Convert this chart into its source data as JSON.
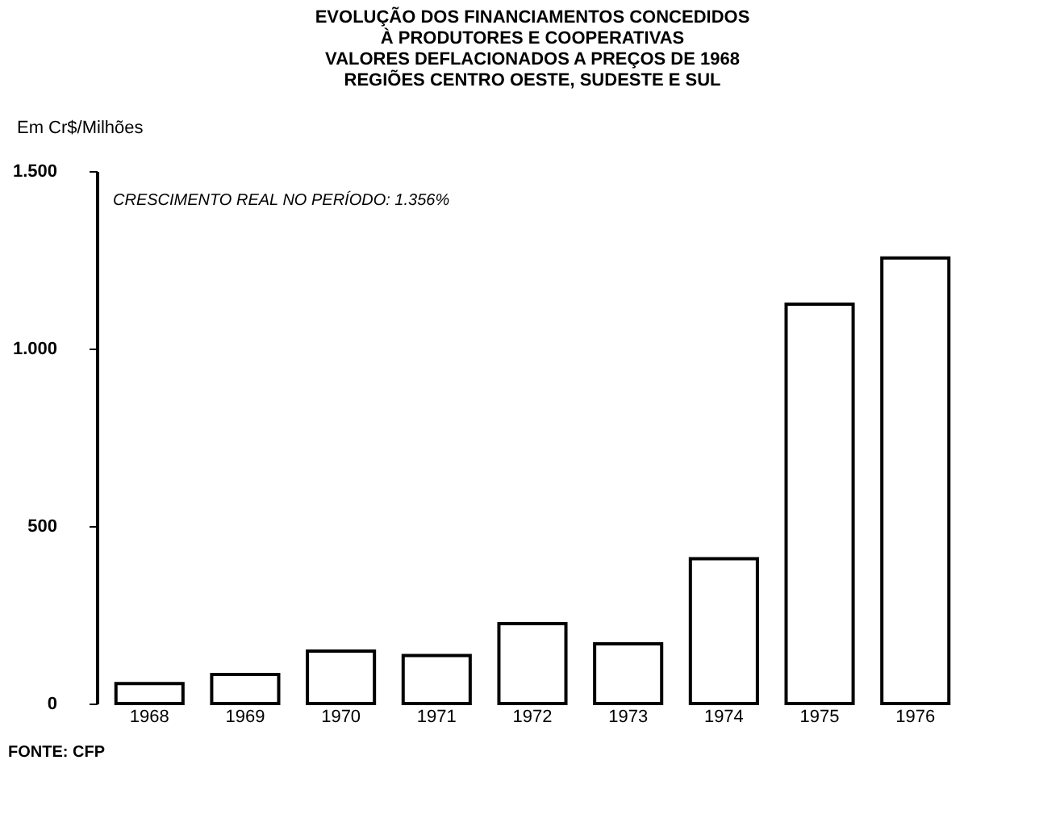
{
  "chart_data": {
    "type": "bar",
    "title": [
      "EVOLUÇÃO DOS FINANCIAMENTOS CONCEDIDOS",
      "À PRODUTORES E COOPERATIVAS",
      "VALORES DEFLACIONADOS A PREÇOS DE 1968",
      "REGIÕES CENTRO OESTE, SUDESTE E SUL"
    ],
    "ylabel": "Em Cr$/Milhões",
    "categories": [
      "1968",
      "1969",
      "1970",
      "1971",
      "1972",
      "1973",
      "1974",
      "1975",
      "1976"
    ],
    "values": [
      56,
      82,
      148,
      135,
      225,
      168,
      408,
      1125,
      1255
    ],
    "color": "#000000",
    "ylim": [
      0,
      1500
    ],
    "yticks": [
      0,
      500,
      {
        "value": 1000,
        "label": "1.000"
      },
      {
        "value": 1500,
        "label": "1.500"
      }
    ],
    "grid": false,
    "annotations": [
      "CRESCIMENTO REAL NO PERÍODO: 1.356%",
      "FONTE:   CFP"
    ]
  }
}
